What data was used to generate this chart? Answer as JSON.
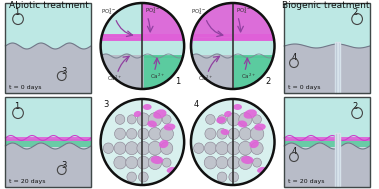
{
  "title_left": "Abiotic treatment",
  "title_right": "Biogenic treatment",
  "bg_color": "#ffffff",
  "panel_bg": "#cdd8e0",
  "water_color": "#bde8e4",
  "cement_color": "#b8bcc8",
  "pink_color": "#e060d8",
  "green_color": "#50c898",
  "circle_bg": "#d8f0ee",
  "gray_circle_face": "#c0c4cc",
  "gray_circle_edge": "#888090",
  "label_t0": "t = 0 days",
  "label_t20": "t = 20 days",
  "arrow_color": "#9040a0",
  "divider_color": "#222222"
}
